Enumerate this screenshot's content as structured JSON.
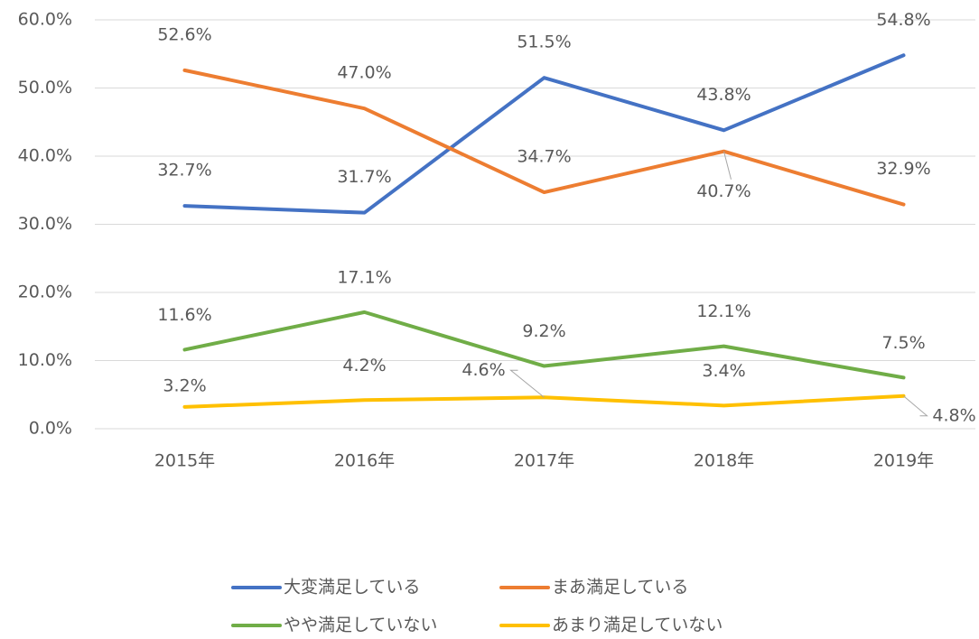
{
  "chart_data": {
    "type": "line",
    "categories": [
      "2015年",
      "2016年",
      "2017年",
      "2018年",
      "2019年"
    ],
    "series": [
      {
        "name": "大変満足している",
        "color": "#4472c4",
        "values": [
          32.7,
          31.7,
          51.5,
          43.8,
          54.8
        ],
        "value_labels": [
          "32.7%",
          "31.7%",
          "51.5%",
          "43.8%",
          "54.8%"
        ]
      },
      {
        "name": "まあ満足している",
        "color": "#ed7d31",
        "values": [
          52.6,
          47.0,
          34.7,
          40.7,
          32.9
        ],
        "value_labels": [
          "52.6%",
          "47.0%",
          "34.7%",
          "40.7%",
          "32.9%"
        ]
      },
      {
        "name": "やや満足していない",
        "color": "#70ad47",
        "values": [
          11.6,
          17.1,
          9.2,
          12.1,
          7.5
        ],
        "value_labels": [
          "11.6%",
          "17.1%",
          "9.2%",
          "12.1%",
          "7.5%"
        ]
      },
      {
        "name": "あまり満足していない",
        "color": "#ffc000",
        "values": [
          3.2,
          4.2,
          4.6,
          3.4,
          4.8
        ],
        "value_labels": [
          "3.2%",
          "4.2%",
          "4.6%",
          "3.4%",
          "4.8%"
        ]
      }
    ],
    "ylim": [
      0,
      60
    ],
    "yticks": [
      {
        "value": 0,
        "label": "0.0%"
      },
      {
        "value": 10,
        "label": "10.0%"
      },
      {
        "value": 20,
        "label": "20.0%"
      },
      {
        "value": 30,
        "label": "30.0%"
      },
      {
        "value": 40,
        "label": "40.0%"
      },
      {
        "value": 50,
        "label": "50.0%"
      },
      {
        "value": 60,
        "label": "60.0%"
      }
    ],
    "grid": true
  }
}
